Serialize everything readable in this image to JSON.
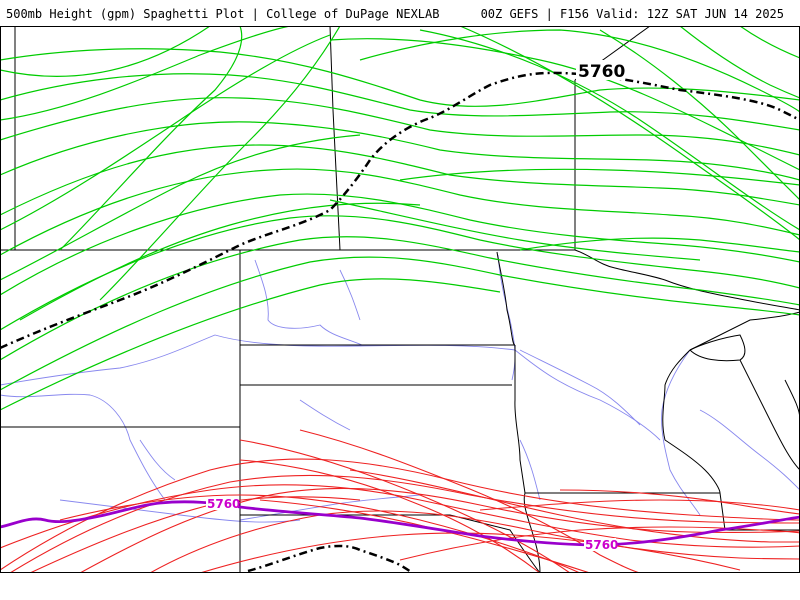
{
  "header": {
    "left_title": "500mb Height (gpm) Spaghetti Plot | College of DuPage NEXLAB",
    "right_title": "00Z GEFS | F156 Valid: 12Z SAT JUN 14 2025"
  },
  "contour_labels": {
    "mean_north": "5760",
    "red_west": "5760",
    "red_east": "5760"
  },
  "colors": {
    "green_members": "#00cc00",
    "red_members": "#ee2222",
    "mean_purple": "#9900cc",
    "ensemble_mean": "#000000",
    "state_borders": "#000000",
    "rivers": "#8888ee"
  }
}
